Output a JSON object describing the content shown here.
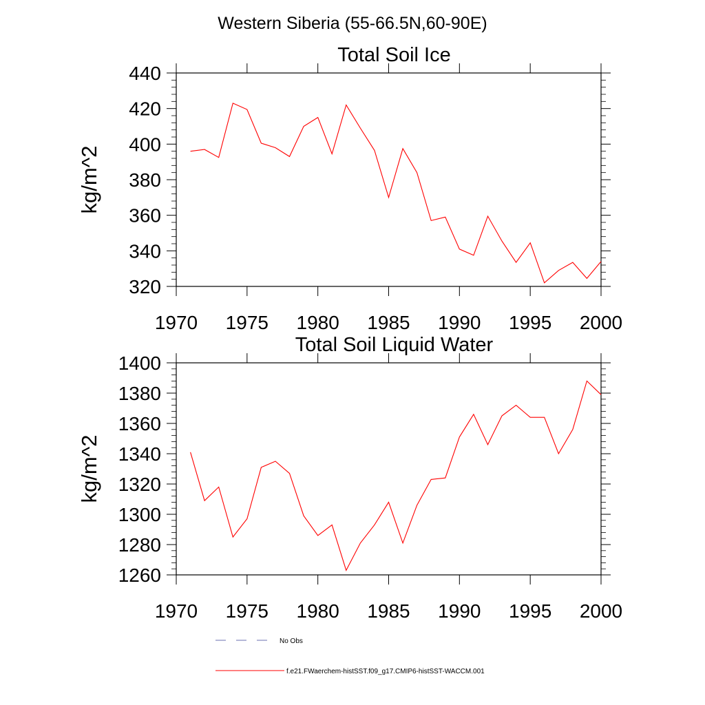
{
  "figure": {
    "main_title": "Western Siberia (55-66.5N,60-90E)"
  },
  "chart_data": [
    {
      "type": "line",
      "title": "Total Soil Ice",
      "xlabel": "",
      "ylabel": "kg/m^2",
      "xlim": [
        1970,
        2000
      ],
      "ylim": [
        320,
        440
      ],
      "xticks": [
        1970,
        1975,
        1980,
        1985,
        1990,
        1995,
        2000
      ],
      "yticks": [
        320,
        340,
        360,
        380,
        400,
        420,
        440
      ],
      "grid": false,
      "series": [
        {
          "name": "f.e21.FWaerchem-histSST.f09_g17.CMIP6-histSST-WACCM.001",
          "color": "#ff0000",
          "x": [
            1971,
            1972,
            1973,
            1974,
            1975,
            1976,
            1977,
            1978,
            1979,
            1980,
            1981,
            1982,
            1983,
            1984,
            1985,
            1986,
            1987,
            1988,
            1989,
            1990,
            1991,
            1992,
            1993,
            1994,
            1995,
            1996,
            1997,
            1998,
            1999,
            2000
          ],
          "values": [
            396,
            397,
            392.5,
            423,
            419.5,
            400.5,
            398,
            393,
            410,
            415,
            394.5,
            422,
            409,
            396.5,
            370,
            397.5,
            384,
            357,
            359,
            341,
            337.5,
            359.5,
            345.5,
            333.5,
            344.5,
            322,
            329,
            333.5,
            324.5,
            334
          ]
        }
      ]
    },
    {
      "type": "line",
      "title": "Total Soil Liquid Water",
      "xlabel": "",
      "ylabel": "kg/m^2",
      "xlim": [
        1970,
        2000
      ],
      "ylim": [
        1260,
        1400
      ],
      "xticks": [
        1970,
        1975,
        1980,
        1985,
        1990,
        1995,
        2000
      ],
      "yticks": [
        1260,
        1280,
        1300,
        1320,
        1340,
        1360,
        1380,
        1400
      ],
      "grid": false,
      "series": [
        {
          "name": "f.e21.FWaerchem-histSST.f09_g17.CMIP6-histSST-WACCM.001",
          "color": "#ff0000",
          "x": [
            1971,
            1972,
            1973,
            1974,
            1975,
            1976,
            1977,
            1978,
            1979,
            1980,
            1981,
            1982,
            1983,
            1984,
            1985,
            1986,
            1987,
            1988,
            1989,
            1990,
            1991,
            1992,
            1993,
            1994,
            1995,
            1996,
            1997,
            1998,
            1999,
            2000
          ],
          "values": [
            1341,
            1309,
            1318,
            1285,
            1297,
            1331,
            1335,
            1327,
            1299,
            1286,
            1293,
            1263,
            1281,
            1293,
            1308,
            1281,
            1306,
            1323,
            1324,
            1351,
            1366,
            1346,
            1365,
            1372,
            1364,
            1364,
            1340,
            1356,
            1388,
            1379
          ]
        }
      ]
    }
  ],
  "legend": {
    "placement": "bottom",
    "entries": [
      {
        "label": "No Obs",
        "color": "#6a6fb0",
        "style": "dashed"
      },
      {
        "label": "f.e21.FWaerchem-histSST.f09_g17.CMIP6-histSST-WACCM.001",
        "color": "#ff0000",
        "style": "solid"
      }
    ]
  }
}
